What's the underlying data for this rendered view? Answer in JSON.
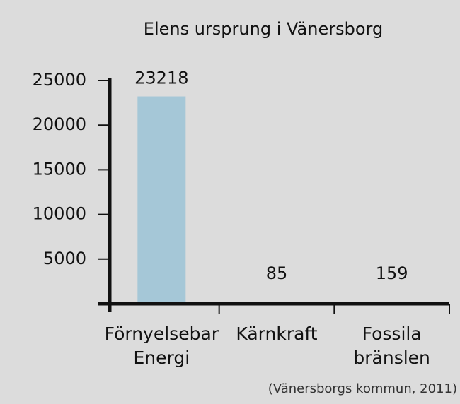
{
  "chart_data": {
    "type": "bar",
    "title": "Elens ursprung i Vänersborg",
    "categories": [
      "Förnyelsebar\nEnergi",
      "Kärnkraft",
      "Fossila\nbränslen"
    ],
    "values": [
      23218,
      85,
      159
    ],
    "color": "#a5c7d7",
    "ylim": [
      0,
      25000
    ],
    "yticks": [
      5000,
      10000,
      15000,
      20000,
      25000
    ],
    "source": "(Vänersborgs kommun, 2011)"
  }
}
